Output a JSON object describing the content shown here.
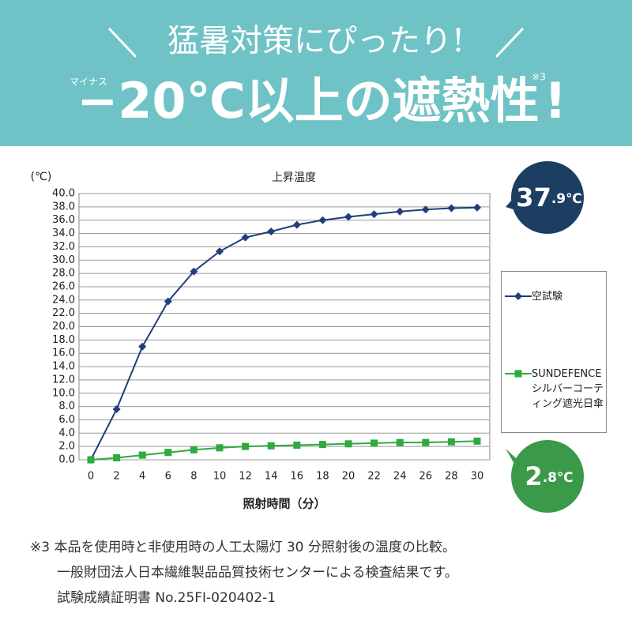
{
  "header": {
    "title": "猛暑対策にぴったり!",
    "ruby": "マイナス",
    "headline": "−20℃以上の遮熱性",
    "note_mark": "※3",
    "exclaim": "!"
  },
  "chart_data": {
    "type": "line",
    "title": "上昇温度",
    "y_label": "(℃)",
    "x_label": "照射時間（分）",
    "x": [
      0,
      2,
      4,
      6,
      8,
      10,
      12,
      14,
      16,
      18,
      20,
      22,
      24,
      26,
      28,
      30
    ],
    "series": [
      {
        "name": "空試験",
        "color": "#1f3e7a",
        "marker": "diamond",
        "values": [
          0,
          7.6,
          17.0,
          23.8,
          28.3,
          31.3,
          33.4,
          34.3,
          35.3,
          36.0,
          36.5,
          36.9,
          37.3,
          37.6,
          37.8,
          37.9
        ]
      },
      {
        "name": "SUNDEFENCEシルバーコーティング遮光日傘",
        "color": "#2eaa3e",
        "marker": "square",
        "values": [
          0,
          0.3,
          0.7,
          1.1,
          1.5,
          1.8,
          2.0,
          2.1,
          2.2,
          2.3,
          2.4,
          2.5,
          2.6,
          2.6,
          2.7,
          2.8
        ]
      }
    ],
    "xlim": [
      0,
      30
    ],
    "xticks": [
      0,
      2,
      4,
      6,
      8,
      10,
      12,
      14,
      16,
      18,
      20,
      22,
      24,
      26,
      28,
      30
    ],
    "ylim": [
      0,
      40
    ],
    "yticks": [
      {
        "value": 0,
        "label": "0.0"
      },
      {
        "value": 2,
        "label": "2.0"
      },
      {
        "value": 4,
        "label": "4.0"
      },
      {
        "value": 6,
        "label": "6.0"
      },
      {
        "value": 8,
        "label": "8.0"
      },
      {
        "value": 10,
        "label": "10.0"
      },
      {
        "value": 12,
        "label": "12.0"
      },
      {
        "value": 14,
        "label": "14.0"
      },
      {
        "value": 16,
        "label": "16.0"
      },
      {
        "value": 18,
        "label": "18.0"
      },
      {
        "value": 20,
        "label": "20.0"
      },
      {
        "value": 22,
        "label": "22.0"
      },
      {
        "value": 24,
        "label": "24.0"
      },
      {
        "value": 26,
        "label": "26.0"
      },
      {
        "value": 28,
        "label": "28.0"
      },
      {
        "value": 30,
        "label": "30.0"
      },
      {
        "value": 32,
        "label": "32.0"
      },
      {
        "value": 34,
        "label": "34.0"
      },
      {
        "value": 36,
        "label": "36.0"
      },
      {
        "value": 38,
        "label": "38.0"
      },
      {
        "value": 40,
        "label": "40.0"
      }
    ],
    "grid": true,
    "legend": "right",
    "annotations": [
      {
        "main": "37",
        "small": ".9℃",
        "color": "#1d3e63"
      },
      {
        "main": "2",
        "small": ".8℃",
        "color": "#3a9a4a"
      }
    ]
  },
  "footnotes": [
    "※3 本品を使用時と非使用時の人工太陽灯 30 分照射後の温度の比較。",
    "一般財団法人日本繊維製品品質技術センターによる検査結果です。",
    "試験成績証明書 No.25FI-020402-1"
  ]
}
